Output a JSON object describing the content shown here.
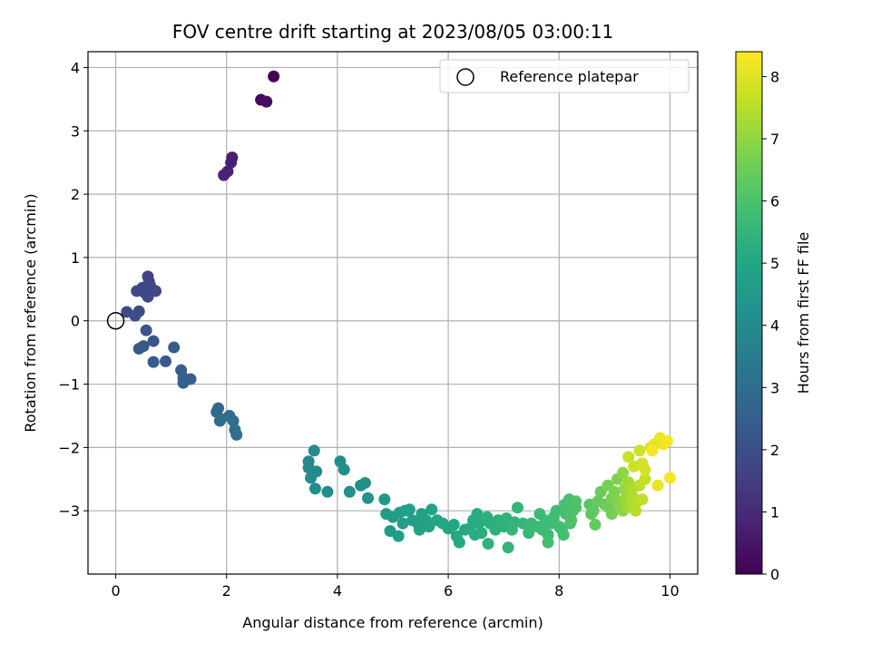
{
  "chart_data": {
    "type": "scatter",
    "title": "FOV centre drift starting at 2023/08/05 03:00:11",
    "xlabel": "Angular distance from reference (arcmin)",
    "ylabel": "Rotation from reference (arcmin)",
    "xlim": [
      -0.5,
      10.5
    ],
    "ylim": [
      -4.0,
      4.25
    ],
    "xticks": [
      0,
      2,
      4,
      6,
      8,
      10
    ],
    "yticks": [
      -3,
      -2,
      -1,
      0,
      1,
      2,
      3,
      4
    ],
    "grid": true,
    "legend": {
      "placement": "top-right",
      "entries": [
        "Reference platepar"
      ]
    },
    "reference_point": {
      "x": 0,
      "y": 0,
      "label": "Reference platepar"
    },
    "colorbar": {
      "label": "Hours from first FF file",
      "range": [
        0,
        8.4
      ],
      "ticks": [
        0,
        1,
        2,
        3,
        4,
        5,
        6,
        7,
        8
      ],
      "colormap": "viridis"
    },
    "points": [
      [
        2.85,
        3.86,
        0.0
      ],
      [
        2.62,
        3.49,
        0.25
      ],
      [
        2.72,
        3.46,
        0.3
      ],
      [
        2.1,
        2.58,
        0.7
      ],
      [
        2.08,
        2.5,
        0.75
      ],
      [
        2.02,
        2.36,
        0.8
      ],
      [
        1.95,
        2.3,
        0.85
      ],
      [
        0.58,
        0.7,
        1.7
      ],
      [
        0.6,
        0.62,
        1.72
      ],
      [
        0.48,
        0.52,
        1.75
      ],
      [
        0.62,
        0.56,
        1.78
      ],
      [
        0.53,
        0.44,
        1.8
      ],
      [
        0.38,
        0.47,
        1.82
      ],
      [
        0.72,
        0.47,
        1.84
      ],
      [
        0.58,
        0.38,
        1.86
      ],
      [
        0.42,
        0.15,
        1.9
      ],
      [
        0.2,
        0.14,
        1.93
      ],
      [
        0.35,
        0.08,
        1.95
      ],
      [
        0.55,
        -0.15,
        2.2
      ],
      [
        0.68,
        -0.32,
        2.25
      ],
      [
        0.5,
        -0.4,
        2.3
      ],
      [
        0.42,
        -0.44,
        2.32
      ],
      [
        0.68,
        -0.65,
        2.38
      ],
      [
        0.9,
        -0.64,
        2.42
      ],
      [
        1.05,
        -0.42,
        2.46
      ],
      [
        1.18,
        -0.78,
        2.5
      ],
      [
        1.22,
        -0.9,
        2.55
      ],
      [
        1.35,
        -0.92,
        2.58
      ],
      [
        1.22,
        -0.98,
        2.6
      ],
      [
        1.85,
        -1.38,
        2.9
      ],
      [
        1.82,
        -1.44,
        2.92
      ],
      [
        1.9,
        -1.55,
        2.95
      ],
      [
        2.05,
        -1.5,
        2.98
      ],
      [
        2.12,
        -1.58,
        3.0
      ],
      [
        1.88,
        -1.58,
        3.02
      ],
      [
        2.15,
        -1.72,
        3.05
      ],
      [
        2.18,
        -1.8,
        3.08
      ],
      [
        3.48,
        -2.22,
        3.9
      ],
      [
        3.58,
        -2.05,
        3.95
      ],
      [
        3.48,
        -2.32,
        3.97
      ],
      [
        3.62,
        -2.38,
        4.0
      ],
      [
        3.52,
        -2.48,
        4.02
      ],
      [
        3.6,
        -2.65,
        4.05
      ],
      [
        3.82,
        -2.7,
        4.08
      ],
      [
        4.05,
        -2.22,
        4.1
      ],
      [
        4.12,
        -2.35,
        4.12
      ],
      [
        4.22,
        -2.7,
        4.15
      ],
      [
        4.42,
        -2.6,
        4.18
      ],
      [
        4.5,
        -2.56,
        4.2
      ],
      [
        4.55,
        -2.8,
        4.22
      ],
      [
        4.85,
        -2.82,
        4.5
      ],
      [
        4.88,
        -3.05,
        4.55
      ],
      [
        4.95,
        -3.32,
        4.58
      ],
      [
        5.0,
        -3.1,
        4.6
      ],
      [
        5.12,
        -3.03,
        4.62
      ],
      [
        5.18,
        -3.2,
        4.65
      ],
      [
        5.1,
        -3.4,
        4.68
      ],
      [
        5.22,
        -3.0,
        4.7
      ],
      [
        5.3,
        -2.98,
        4.72
      ],
      [
        5.35,
        -3.15,
        4.74
      ],
      [
        5.45,
        -3.2,
        4.76
      ],
      [
        5.52,
        -3.05,
        4.78
      ],
      [
        5.6,
        -3.15,
        4.8
      ],
      [
        5.48,
        -3.3,
        4.82
      ],
      [
        5.65,
        -3.25,
        4.84
      ],
      [
        5.7,
        -2.98,
        4.86
      ],
      [
        5.8,
        -3.15,
        4.9
      ],
      [
        5.9,
        -3.2,
        4.95
      ],
      [
        6.0,
        -3.28,
        5.0
      ],
      [
        6.1,
        -3.22,
        5.02
      ],
      [
        6.15,
        -3.4,
        5.04
      ],
      [
        6.2,
        -3.5,
        5.06
      ],
      [
        6.3,
        -3.3,
        5.1
      ],
      [
        6.38,
        -3.28,
        5.12
      ],
      [
        6.45,
        -3.15,
        5.14
      ],
      [
        6.52,
        -3.05,
        5.16
      ],
      [
        6.55,
        -3.2,
        5.18
      ],
      [
        6.6,
        -3.35,
        5.2
      ],
      [
        6.48,
        -3.38,
        5.22
      ],
      [
        6.7,
        -3.1,
        5.3
      ],
      [
        6.75,
        -3.2,
        5.32
      ],
      [
        6.85,
        -3.3,
        5.34
      ],
      [
        6.9,
        -3.15,
        5.36
      ],
      [
        7.0,
        -3.25,
        5.38
      ],
      [
        7.05,
        -3.12,
        5.4
      ],
      [
        6.72,
        -3.52,
        5.42
      ],
      [
        7.08,
        -3.58,
        5.44
      ],
      [
        7.15,
        -3.3,
        5.46
      ],
      [
        7.2,
        -3.18,
        5.48
      ],
      [
        7.25,
        -2.95,
        5.5
      ],
      [
        7.35,
        -3.2,
        5.55
      ],
      [
        7.45,
        -3.35,
        5.6
      ],
      [
        7.5,
        -3.2,
        5.62
      ],
      [
        7.6,
        -3.25,
        5.65
      ],
      [
        7.65,
        -3.05,
        5.68
      ],
      [
        7.7,
        -3.3,
        5.7
      ],
      [
        7.75,
        -3.15,
        5.72
      ],
      [
        7.8,
        -3.38,
        5.74
      ],
      [
        7.85,
        -3.2,
        5.76
      ],
      [
        7.9,
        -3.1,
        5.78
      ],
      [
        7.95,
        -3.0,
        5.8
      ],
      [
        7.8,
        -3.5,
        5.82
      ],
      [
        8.0,
        -3.25,
        5.84
      ],
      [
        8.05,
        -3.3,
        5.86
      ],
      [
        8.08,
        -3.38,
        5.88
      ],
      [
        8.12,
        -3.05,
        5.9
      ],
      [
        8.1,
        -2.9,
        5.92
      ],
      [
        8.18,
        -2.82,
        5.94
      ],
      [
        8.2,
        -3.2,
        5.96
      ],
      [
        8.25,
        -3.0,
        5.98
      ],
      [
        8.3,
        -2.85,
        6.0
      ],
      [
        8.22,
        -3.15,
        6.02
      ],
      [
        8.3,
        -2.95,
        6.04
      ],
      [
        8.55,
        -2.9,
        6.2
      ],
      [
        8.58,
        -3.05,
        6.25
      ],
      [
        8.62,
        -3.0,
        6.3
      ],
      [
        8.65,
        -3.22,
        6.35
      ],
      [
        8.7,
        -2.85,
        6.4
      ],
      [
        8.75,
        -2.7,
        6.45
      ],
      [
        8.82,
        -2.9,
        6.5
      ],
      [
        8.9,
        -2.95,
        6.55
      ],
      [
        8.95,
        -3.05,
        6.6
      ],
      [
        8.88,
        -2.6,
        6.65
      ],
      [
        8.95,
        -2.8,
        6.7
      ],
      [
        9.0,
        -2.7,
        6.75
      ],
      [
        9.05,
        -2.5,
        6.8
      ],
      [
        9.08,
        -2.9,
        6.85
      ],
      [
        9.12,
        -2.85,
        6.9
      ],
      [
        9.15,
        -3.0,
        6.95
      ],
      [
        9.15,
        -2.4,
        7.0
      ],
      [
        9.18,
        -2.65,
        7.05
      ],
      [
        9.2,
        -2.8,
        7.1
      ],
      [
        9.22,
        -2.95,
        7.15
      ],
      [
        9.25,
        -2.55,
        7.2
      ],
      [
        9.28,
        -2.75,
        7.25
      ],
      [
        9.3,
        -2.9,
        7.3
      ],
      [
        9.32,
        -2.65,
        7.35
      ],
      [
        9.35,
        -2.8,
        7.4
      ],
      [
        9.38,
        -3.0,
        7.45
      ],
      [
        9.42,
        -2.85,
        7.5
      ],
      [
        9.45,
        -2.6,
        7.55
      ],
      [
        9.5,
        -2.82,
        7.6
      ],
      [
        9.55,
        -2.5,
        7.65
      ],
      [
        9.25,
        -2.15,
        7.7
      ],
      [
        9.35,
        -2.3,
        7.75
      ],
      [
        9.45,
        -2.05,
        7.8
      ],
      [
        9.5,
        -2.25,
        7.85
      ],
      [
        9.55,
        -2.35,
        7.9
      ],
      [
        9.65,
        -2.0,
        7.95
      ],
      [
        9.72,
        -1.95,
        8.05
      ],
      [
        9.78,
        -2.6,
        8.1
      ],
      [
        9.82,
        -1.85,
        8.15
      ],
      [
        9.88,
        -1.95,
        8.2
      ],
      [
        9.95,
        -1.9,
        8.3
      ],
      [
        10.0,
        -2.48,
        8.32
      ],
      [
        9.68,
        -2.05,
        8.34
      ]
    ]
  }
}
